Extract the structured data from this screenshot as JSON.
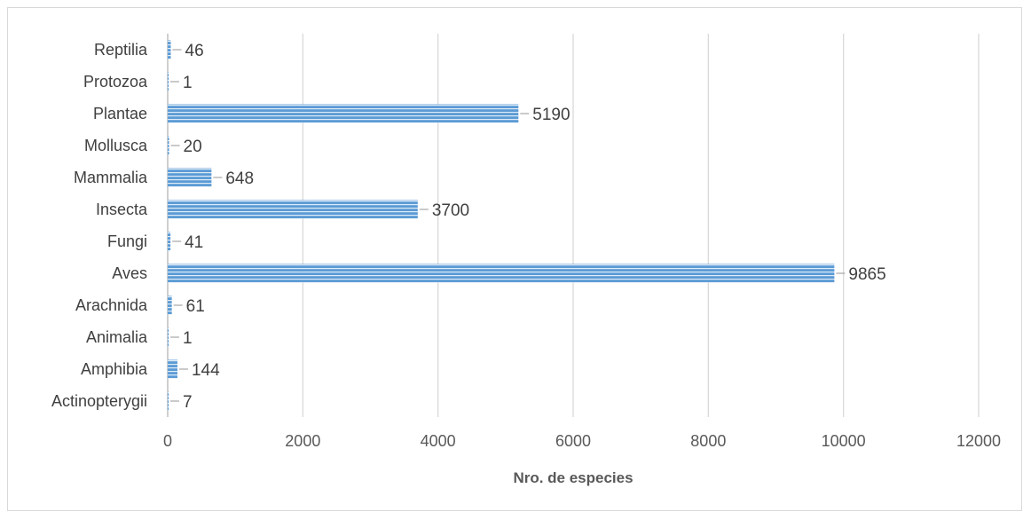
{
  "chart_data": {
    "type": "bar",
    "orientation": "horizontal",
    "categories": [
      "Actinopterygii",
      "Amphibia",
      "Animalia",
      "Arachnida",
      "Aves",
      "Fungi",
      "Insecta",
      "Mammalia",
      "Mollusca",
      "Plantae",
      "Protozoa",
      "Reptilia"
    ],
    "values": [
      7,
      144,
      1,
      61,
      9865,
      41,
      3700,
      648,
      20,
      5190,
      1,
      46
    ],
    "xlabel": "Nro. de especies",
    "ylabel": "",
    "xlim": [
      0,
      12000
    ],
    "xticks": [
      "0",
      "2000",
      "4000",
      "6000",
      "8000",
      "10000",
      "12000"
    ],
    "grid": true,
    "bar_color": "#5B9BD5",
    "bar_stripe_color": "#DEEBF7",
    "gridline_color": "#D9D9D9"
  }
}
